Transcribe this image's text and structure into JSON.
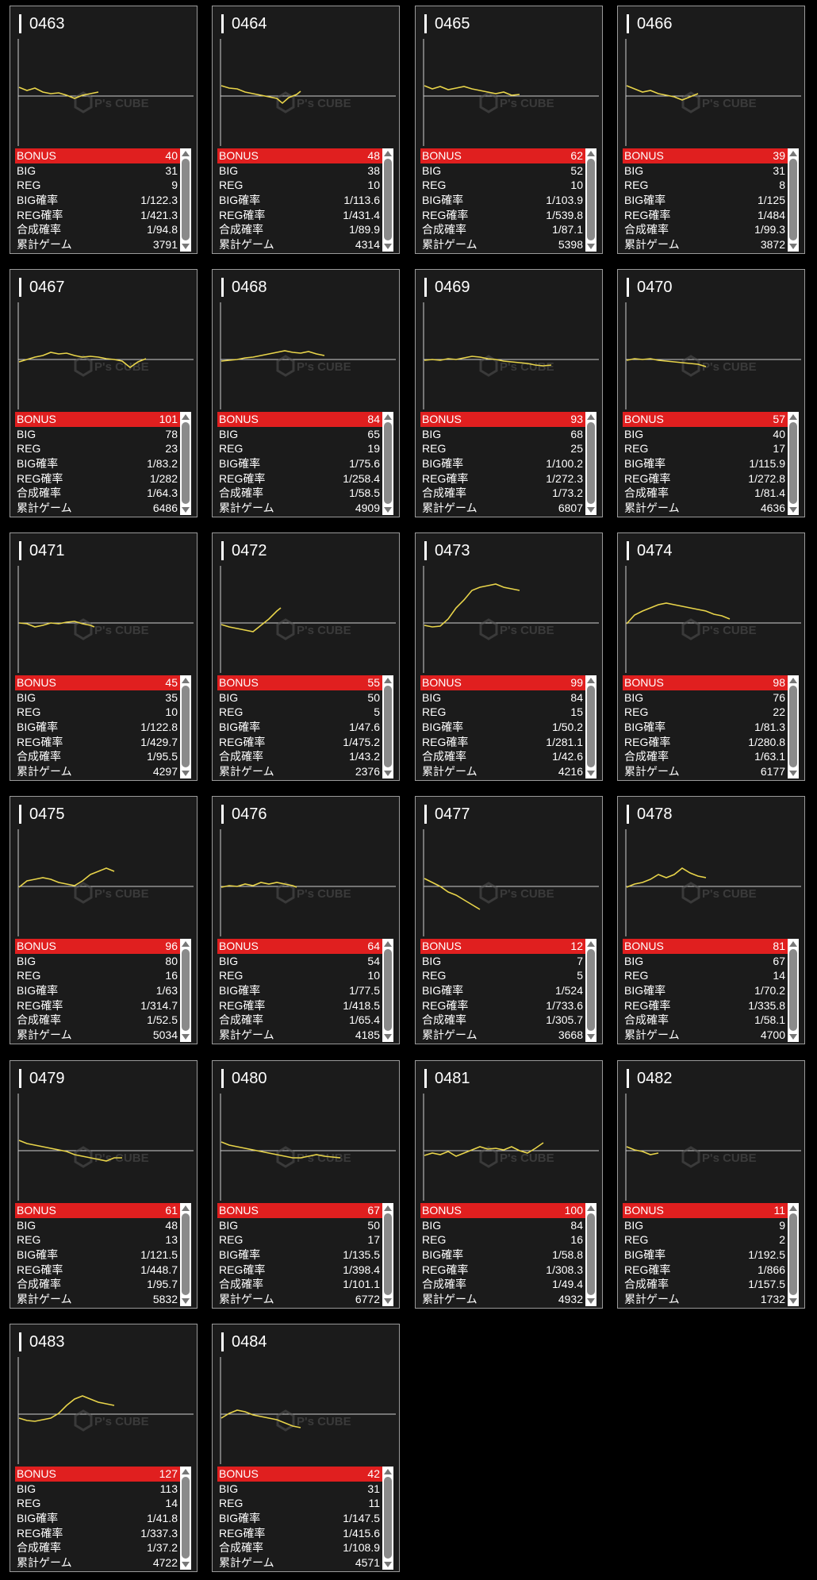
{
  "watermark": {
    "brand": "P's CUBE"
  },
  "labels": {
    "bonus": "BONUS",
    "big": "BIG",
    "reg": "REG",
    "big_rate": "BIG確率",
    "reg_rate": "REG確率",
    "combined_rate": "合成確率",
    "total_games": "累計ゲーム"
  },
  "colors": {
    "line": "#e8d44a",
    "bonus_bg": "#e01f1f",
    "card_bg": "#1b1b1b"
  },
  "machines": [
    {
      "id": "0463",
      "bonus": "40",
      "big": "31",
      "reg": "9",
      "big_rate": "1/122.3",
      "reg_rate": "1/421.3",
      "combined_rate": "1/94.8",
      "total_games": "3791"
    },
    {
      "id": "0464",
      "bonus": "48",
      "big": "38",
      "reg": "10",
      "big_rate": "1/113.6",
      "reg_rate": "1/431.4",
      "combined_rate": "1/89.9",
      "total_games": "4314"
    },
    {
      "id": "0465",
      "bonus": "62",
      "big": "52",
      "reg": "10",
      "big_rate": "1/103.9",
      "reg_rate": "1/539.8",
      "combined_rate": "1/87.1",
      "total_games": "5398"
    },
    {
      "id": "0466",
      "bonus": "39",
      "big": "31",
      "reg": "8",
      "big_rate": "1/125",
      "reg_rate": "1/484",
      "combined_rate": "1/99.3",
      "total_games": "3872"
    },
    {
      "id": "0467",
      "bonus": "101",
      "big": "78",
      "reg": "23",
      "big_rate": "1/83.2",
      "reg_rate": "1/282",
      "combined_rate": "1/64.3",
      "total_games": "6486"
    },
    {
      "id": "0468",
      "bonus": "84",
      "big": "65",
      "reg": "19",
      "big_rate": "1/75.6",
      "reg_rate": "1/258.4",
      "combined_rate": "1/58.5",
      "total_games": "4909"
    },
    {
      "id": "0469",
      "bonus": "93",
      "big": "68",
      "reg": "25",
      "big_rate": "1/100.2",
      "reg_rate": "1/272.3",
      "combined_rate": "1/73.2",
      "total_games": "6807"
    },
    {
      "id": "0470",
      "bonus": "57",
      "big": "40",
      "reg": "17",
      "big_rate": "1/115.9",
      "reg_rate": "1/272.8",
      "combined_rate": "1/81.4",
      "total_games": "4636"
    },
    {
      "id": "0471",
      "bonus": "45",
      "big": "35",
      "reg": "10",
      "big_rate": "1/122.8",
      "reg_rate": "1/429.7",
      "combined_rate": "1/95.5",
      "total_games": "4297"
    },
    {
      "id": "0472",
      "bonus": "55",
      "big": "50",
      "reg": "5",
      "big_rate": "1/47.6",
      "reg_rate": "1/475.2",
      "combined_rate": "1/43.2",
      "total_games": "2376"
    },
    {
      "id": "0473",
      "bonus": "99",
      "big": "84",
      "reg": "15",
      "big_rate": "1/50.2",
      "reg_rate": "1/281.1",
      "combined_rate": "1/42.6",
      "total_games": "4216"
    },
    {
      "id": "0474",
      "bonus": "98",
      "big": "76",
      "reg": "22",
      "big_rate": "1/81.3",
      "reg_rate": "1/280.8",
      "combined_rate": "1/63.1",
      "total_games": "6177"
    },
    {
      "id": "0475",
      "bonus": "96",
      "big": "80",
      "reg": "16",
      "big_rate": "1/63",
      "reg_rate": "1/314.7",
      "combined_rate": "1/52.5",
      "total_games": "5034"
    },
    {
      "id": "0476",
      "bonus": "64",
      "big": "54",
      "reg": "10",
      "big_rate": "1/77.5",
      "reg_rate": "1/418.5",
      "combined_rate": "1/65.4",
      "total_games": "4185"
    },
    {
      "id": "0477",
      "bonus": "12",
      "big": "7",
      "reg": "5",
      "big_rate": "1/524",
      "reg_rate": "1/733.6",
      "combined_rate": "1/305.7",
      "total_games": "3668"
    },
    {
      "id": "0478",
      "bonus": "81",
      "big": "67",
      "reg": "14",
      "big_rate": "1/70.2",
      "reg_rate": "1/335.8",
      "combined_rate": "1/58.1",
      "total_games": "4700"
    },
    {
      "id": "0479",
      "bonus": "61",
      "big": "48",
      "reg": "13",
      "big_rate": "1/121.5",
      "reg_rate": "1/448.7",
      "combined_rate": "1/95.7",
      "total_games": "5832"
    },
    {
      "id": "0480",
      "bonus": "67",
      "big": "50",
      "reg": "17",
      "big_rate": "1/135.5",
      "reg_rate": "1/398.4",
      "combined_rate": "1/101.1",
      "total_games": "6772"
    },
    {
      "id": "0481",
      "bonus": "100",
      "big": "84",
      "reg": "16",
      "big_rate": "1/58.8",
      "reg_rate": "1/308.3",
      "combined_rate": "1/49.4",
      "total_games": "4932"
    },
    {
      "id": "0482",
      "bonus": "11",
      "big": "9",
      "reg": "2",
      "big_rate": "1/192.5",
      "reg_rate": "1/866",
      "combined_rate": "1/157.5",
      "total_games": "1732"
    },
    {
      "id": "0483",
      "bonus": "127",
      "big": "113",
      "reg": "14",
      "big_rate": "1/41.8",
      "reg_rate": "1/337.3",
      "combined_rate": "1/37.2",
      "total_games": "4722"
    },
    {
      "id": "0484",
      "bonus": "42",
      "big": "31",
      "reg": "11",
      "big_rate": "1/147.5",
      "reg_rate": "1/415.6",
      "combined_rate": "1/108.9",
      "total_games": "4571"
    }
  ]
}
